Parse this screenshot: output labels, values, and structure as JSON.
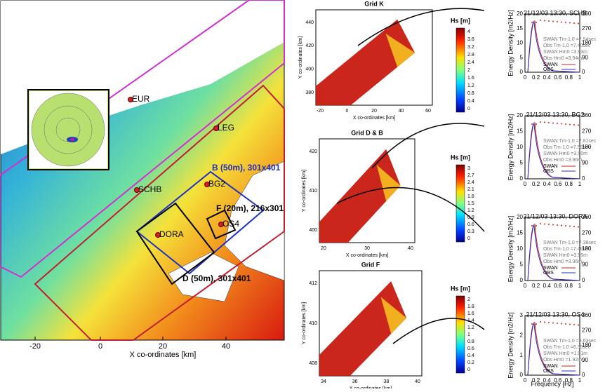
{
  "main_map": {
    "x_label": "X co-ordinates [km]",
    "x_ticks": [
      "-20",
      "0",
      "20",
      "40"
    ],
    "stations": [
      "EUR",
      "LEG",
      "SCHB",
      "BG2",
      "OS4",
      "DORA"
    ],
    "grids": [
      "B (50m), 301x401",
      "F (20m), 216x301",
      "D (50m), 301x401"
    ]
  },
  "panels": [
    {
      "title": "Grid K",
      "x_label": "X co-ordinates [km]",
      "y_label": "Y co-ordinates [km]",
      "x_ticks": [
        "-20",
        "0",
        "20",
        "40",
        "60"
      ],
      "y_ticks": [
        "440",
        "420",
        "400",
        "380"
      ],
      "colorbar_label": "Hs [m]",
      "colorbar_ticks": [
        "4",
        "3.6",
        "3.2",
        "2.8",
        "2.4",
        "2",
        "1.6",
        "1.2",
        "0.8",
        "0.4",
        "0"
      ]
    },
    {
      "title": "Grid D & B",
      "x_label": "X co-ordinates [km]",
      "y_label": "Y co-ordinates [km]",
      "x_ticks": [
        "20",
        "30",
        "40"
      ],
      "y_ticks": [
        "420",
        "410",
        "400"
      ],
      "colorbar_label": "Hs [m]",
      "colorbar_ticks": [
        "3",
        "2.7",
        "2.4",
        "2.1",
        "1.8",
        "1.5",
        "1.2",
        "0.9",
        "0.6",
        "0.3",
        "0"
      ]
    },
    {
      "title": "Grid F",
      "x_label": "X co-ordinates [km]",
      "y_label": "Y co-ordinates [km]",
      "x_ticks": [
        "34",
        "36",
        "38",
        "40"
      ],
      "y_ticks": [
        "412",
        "410",
        "408"
      ],
      "colorbar_label": "Hs [m]",
      "colorbar_ticks": [
        "2",
        "1.8",
        "1.6",
        "1.4",
        "1.2",
        "1",
        "0.8",
        "0.6",
        "0.4",
        "0.2",
        "0"
      ]
    }
  ],
  "spectra": {
    "y_label": "Energy Density [m2/Hz]",
    "x_label": "Frequency [Hz]",
    "legend": [
      "SWAN",
      "OBS"
    ],
    "plots": [
      {
        "title": "21/12/03 13:30, SCHB",
        "stats": [
          "SWAN Tm-1,0 =7.54sec",
          "Obs Tm-1,0 =7.40sec",
          "SWAN Hm0 =3.93m",
          "Obs Hm0 =3.94m"
        ],
        "y_ticks": [
          "20",
          "15",
          "10",
          "5",
          "0"
        ],
        "y2_ticks": [
          "360",
          "270",
          "180",
          "90",
          "0"
        ],
        "x_ticks": [
          "0",
          "0.2",
          "0.4",
          "0.6",
          "0.8",
          "1"
        ]
      },
      {
        "title": "21/12/03 13:30, BG2",
        "stats": [
          "SWAN Tm-1,0 =7.81sec",
          "Obs Tm-1,0 =7.58sec",
          "SWAN Hm0 =3.90m",
          "Obs Hm0 =3.96m"
        ],
        "y_ticks": [
          "20",
          "15",
          "10",
          "5",
          "0"
        ],
        "y2_ticks": [
          "360",
          "270",
          "180",
          "90",
          "0"
        ],
        "x_ticks": [
          "0",
          "0.2",
          "0.4",
          "0.6",
          "0.8",
          "1"
        ]
      },
      {
        "title": "21/12/03 13:30, DORA",
        "stats": [
          "SWAN Tm-1,0 =7.38sec",
          "Obs Tm-1,0 =7.48sec",
          "SWAN Hm0 =3.55m",
          "Obs Hm0 =3.36m"
        ],
        "y_ticks": [
          "20",
          "15",
          "10",
          "5",
          "0"
        ],
        "y2_ticks": [
          "360",
          "270",
          "180",
          "90",
          "0"
        ],
        "x_ticks": [
          "0",
          "0.2",
          "0.4",
          "0.6",
          "0.8",
          "1"
        ]
      },
      {
        "title": "21/12/03 13:30, OS4",
        "stats": [
          "SWAN Tm-1,0 =5.63sec",
          "Obs Tm-1,0 =6.35sec",
          "SWAN Hm0 =1.91m",
          "Obs Hm0 =1.92m"
        ],
        "y_ticks": [
          "3",
          "2",
          "1",
          "0"
        ],
        "y2_ticks": [
          "360",
          "270",
          "180",
          "90",
          "0"
        ],
        "x_ticks": [
          "0",
          "0.2",
          "0.4",
          "0.6",
          "0.8",
          "1"
        ]
      }
    ]
  }
}
